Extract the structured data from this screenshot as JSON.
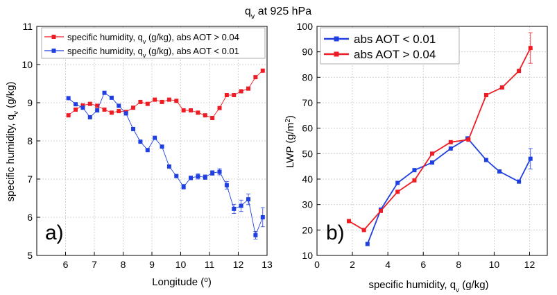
{
  "figure": {
    "title": "q",
    "title_sub": "v",
    "title_rest": " at 925 hPa"
  },
  "chart_data": [
    {
      "type": "line",
      "panel_label": "a)",
      "xlabel": "Longitude (",
      "xlabel_sup": "o",
      "xlabel_end": ")",
      "ylabel": "specific humidity, q",
      "ylabel_sub": "v",
      "ylabel_end": " (g/kg)",
      "xlim": [
        5,
        13
      ],
      "ylim": [
        5,
        11
      ],
      "xticks": [
        6,
        7,
        8,
        9,
        10,
        11,
        12,
        13
      ],
      "yticks": [
        5,
        6,
        7,
        8,
        9,
        10,
        11
      ],
      "grid": true,
      "legend_position": "top",
      "series": [
        {
          "legend": "specific humidity, q",
          "legend_sub": "v",
          "legend_end": " (g/kg), abs AOT > 0.04",
          "color": "#ee1c24",
          "x": [
            6.1,
            6.35,
            6.6,
            6.85,
            7.1,
            7.35,
            7.6,
            7.85,
            8.1,
            8.35,
            8.6,
            8.85,
            9.1,
            9.35,
            9.6,
            9.85,
            10.1,
            10.35,
            10.6,
            10.85,
            11.1,
            11.35,
            11.6,
            11.85,
            12.1,
            12.35,
            12.6,
            12.85
          ],
          "y": [
            8.67,
            8.82,
            8.93,
            8.97,
            8.92,
            8.82,
            8.74,
            8.78,
            8.76,
            8.87,
            9.02,
            8.97,
            9.08,
            9.02,
            9.08,
            9.05,
            8.8,
            8.8,
            8.74,
            8.67,
            8.6,
            8.86,
            9.2,
            9.2,
            9.3,
            9.37,
            9.67,
            9.84
          ],
          "err": [
            0,
            0,
            0,
            0,
            0,
            0,
            0,
            0,
            0,
            0,
            0,
            0,
            0,
            0,
            0,
            0,
            0,
            0,
            0,
            0,
            0,
            0,
            0,
            0,
            0,
            0,
            0,
            0
          ]
        },
        {
          "legend": "specific humidity, q",
          "legend_sub": "v",
          "legend_end": " (g/kg), abs AOT < 0.01",
          "color": "#1f3fe0",
          "x": [
            6.1,
            6.35,
            6.6,
            6.85,
            7.1,
            7.35,
            7.6,
            7.85,
            8.1,
            8.35,
            8.6,
            8.85,
            9.1,
            9.35,
            9.6,
            9.85,
            10.1,
            10.35,
            10.6,
            10.85,
            11.1,
            11.35,
            11.6,
            11.85,
            12.1,
            12.35,
            12.6,
            12.85
          ],
          "y": [
            9.12,
            8.96,
            8.87,
            8.62,
            8.8,
            9.26,
            9.13,
            8.92,
            8.72,
            8.31,
            7.98,
            7.76,
            8.08,
            7.85,
            7.33,
            7.08,
            6.8,
            7.03,
            7.07,
            7.05,
            7.16,
            7.19,
            6.84,
            6.22,
            6.3,
            6.47,
            5.53,
            6.0
          ],
          "err": [
            0,
            0,
            0,
            0,
            0,
            0,
            0,
            0,
            0,
            0,
            0,
            0,
            0,
            0,
            0,
            0,
            0.06,
            0.05,
            0.07,
            0.06,
            0.06,
            0.08,
            0.1,
            0.12,
            0.15,
            0.14,
            0.1,
            0.25
          ]
        }
      ]
    },
    {
      "type": "line",
      "panel_label": "b)",
      "xlabel": "specific humidity, q",
      "xlabel_sub": "v",
      "xlabel_end": " (g/kg)",
      "ylabel": "LWP (g/m",
      "ylabel_sup": "2",
      "ylabel_end": ")",
      "xlim": [
        0,
        13
      ],
      "ylim": [
        10,
        100
      ],
      "xticks": [
        0,
        2,
        4,
        6,
        8,
        10,
        12
      ],
      "yticks": [
        10,
        20,
        30,
        40,
        50,
        60,
        70,
        80,
        90,
        100
      ],
      "grid": true,
      "legend_position": "top-left",
      "series": [
        {
          "legend": "abs AOT < 0.01",
          "color": "#1f3fe0",
          "x": [
            2.85,
            3.6,
            4.55,
            5.5,
            6.5,
            7.55,
            8.5,
            9.55,
            10.3,
            11.4,
            12.05
          ],
          "y": [
            14.5,
            28.0,
            38.5,
            43.5,
            46.5,
            52.0,
            56.0,
            47.5,
            43.0,
            39.0,
            48.0
          ],
          "err": [
            0,
            0,
            0,
            0,
            0,
            0,
            0,
            0,
            0,
            0,
            4
          ]
        },
        {
          "legend": "abs AOT > 0.04",
          "color": "#ee1c24",
          "x": [
            1.8,
            2.65,
            3.6,
            4.55,
            5.5,
            6.5,
            7.55,
            8.55,
            9.55,
            10.45,
            11.4,
            12.05
          ],
          "y": [
            23.5,
            20.0,
            27.5,
            35.0,
            39.5,
            50.0,
            54.5,
            55.5,
            73.0,
            76.0,
            82.5,
            91.5
          ],
          "err": [
            0,
            0,
            0,
            0,
            0,
            0,
            0,
            0,
            0,
            0,
            0,
            6
          ]
        }
      ]
    }
  ]
}
